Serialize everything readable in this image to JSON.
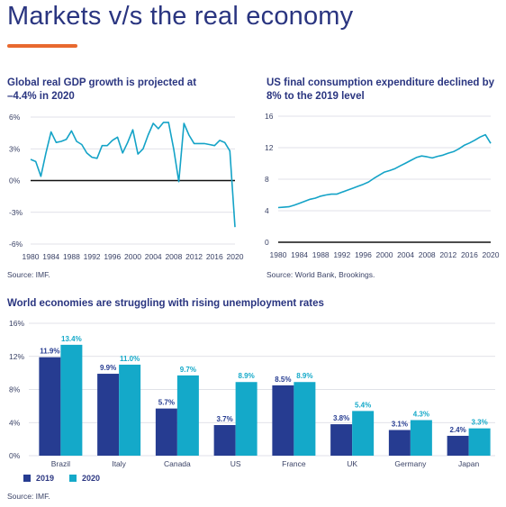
{
  "page": {
    "title": "Markets v/s the real economy",
    "accent_color": "#e8692f",
    "title_color": "#2a3580"
  },
  "chart_data": [
    {
      "type": "line",
      "title_lines": [
        "Global real GDP growth is projected at",
        "–4.4% in 2020"
      ],
      "source": "Source: IMF.",
      "x": [
        1980,
        1981,
        1982,
        1983,
        1984,
        1985,
        1986,
        1987,
        1988,
        1989,
        1990,
        1991,
        1992,
        1993,
        1994,
        1995,
        1996,
        1997,
        1998,
        1999,
        2000,
        2001,
        2002,
        2003,
        2004,
        2005,
        2006,
        2007,
        2008,
        2009,
        2010,
        2011,
        2012,
        2013,
        2014,
        2015,
        2016,
        2017,
        2018,
        2019,
        2020
      ],
      "series": [
        {
          "color": "#14a3c7",
          "values": [
            2.0,
            1.8,
            0.4,
            2.6,
            4.6,
            3.6,
            3.7,
            3.9,
            4.7,
            3.7,
            3.4,
            2.6,
            2.2,
            2.1,
            3.3,
            3.3,
            3.8,
            4.1,
            2.6,
            3.6,
            4.8,
            2.5,
            3.0,
            4.3,
            5.4,
            4.9,
            5.5,
            5.5,
            3.0,
            -0.1,
            5.4,
            4.3,
            3.5,
            3.5,
            3.5,
            3.4,
            3.3,
            3.8,
            3.6,
            2.8,
            -4.4
          ]
        }
      ],
      "xticks": [
        1980,
        1984,
        1988,
        1992,
        1996,
        2000,
        2004,
        2008,
        2012,
        2016,
        2020
      ],
      "yticks": [
        6,
        3,
        0,
        -3,
        -6
      ],
      "ytick_labels": [
        "6%",
        "3%",
        "0%",
        "-3%",
        "-6%"
      ],
      "ylim": [
        -6,
        6
      ],
      "grid": true
    },
    {
      "type": "line",
      "title_lines": [
        "US final consumption expenditure declined by",
        "8% to the 2019 level"
      ],
      "source": "Source: World Bank, Brookings.",
      "x": [
        1980,
        1981,
        1982,
        1983,
        1984,
        1985,
        1986,
        1987,
        1988,
        1989,
        1990,
        1991,
        1992,
        1993,
        1994,
        1995,
        1996,
        1997,
        1998,
        1999,
        2000,
        2001,
        2002,
        2003,
        2004,
        2005,
        2006,
        2007,
        2008,
        2009,
        2010,
        2011,
        2012,
        2013,
        2014,
        2015,
        2016,
        2017,
        2018,
        2019,
        2020
      ],
      "series": [
        {
          "color": "#14a3c7",
          "values": [
            4.4,
            4.45,
            4.5,
            4.7,
            4.95,
            5.2,
            5.45,
            5.6,
            5.85,
            6.0,
            6.1,
            6.1,
            6.35,
            6.6,
            6.85,
            7.1,
            7.35,
            7.65,
            8.1,
            8.5,
            8.9,
            9.1,
            9.35,
            9.7,
            10.05,
            10.4,
            10.75,
            10.95,
            10.85,
            10.7,
            10.9,
            11.05,
            11.3,
            11.5,
            11.85,
            12.3,
            12.6,
            12.95,
            13.35,
            13.65,
            12.55
          ]
        }
      ],
      "xticks": [
        1980,
        1984,
        1988,
        1992,
        1996,
        2000,
        2004,
        2008,
        2012,
        2016,
        2020
      ],
      "yticks": [
        16,
        12,
        8,
        4,
        0
      ],
      "ytick_labels": [
        "16",
        "12",
        "8",
        "4",
        "0"
      ],
      "ylim": [
        0,
        16
      ],
      "grid": true
    },
    {
      "type": "bar",
      "title": "World economies are struggling with rising unemployment rates",
      "source": "Source: IMF.",
      "categories": [
        "Brazil",
        "Italy",
        "Canada",
        "US",
        "France",
        "UK",
        "Germany",
        "Japan"
      ],
      "series": [
        {
          "name": "2019",
          "color": "#263c91",
          "values": [
            11.9,
            9.9,
            5.7,
            3.7,
            8.5,
            3.8,
            3.1,
            2.4
          ],
          "labels": [
            "11.9%",
            "9.9%",
            "5.7%",
            "3.7%",
            "8.5%",
            "3.8%",
            "3.1%",
            "2.4%"
          ]
        },
        {
          "name": "2020",
          "color": "#14a9c9",
          "values": [
            13.4,
            11.0,
            9.7,
            8.9,
            8.9,
            5.4,
            4.3,
            3.3
          ],
          "labels": [
            "13.4%",
            "11.0%",
            "9.7%",
            "8.9%",
            "8.9%",
            "5.4%",
            "4.3%",
            "3.3%"
          ]
        }
      ],
      "yticks": [
        16,
        12,
        8,
        4,
        0
      ],
      "ytick_labels": [
        "16%",
        "12%",
        "8%",
        "4%",
        "0%"
      ],
      "ylim": [
        0,
        16
      ],
      "legend_position": "bottom-left",
      "grid": true
    }
  ]
}
